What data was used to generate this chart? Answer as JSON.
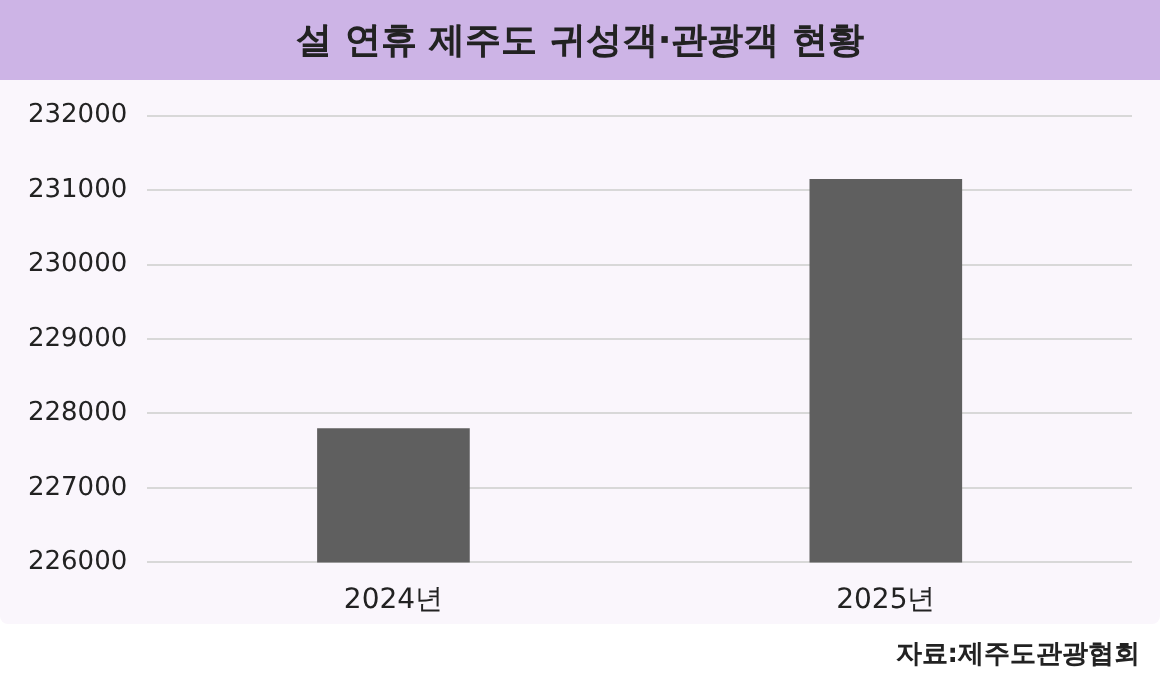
{
  "chart_data": {
    "type": "bar",
    "title": "설 연휴 제주도 귀성객·관광객 현황",
    "categories": [
      "2024년",
      "2025년"
    ],
    "values": [
      227800,
      231150
    ],
    "color": "#5f5f5f",
    "ylim": [
      226000,
      232000
    ],
    "yticks": [
      226000,
      227000,
      228000,
      229000,
      230000,
      231000,
      232000
    ],
    "grid": "y",
    "annotations": [
      "자료:제주도관광협회"
    ]
  }
}
